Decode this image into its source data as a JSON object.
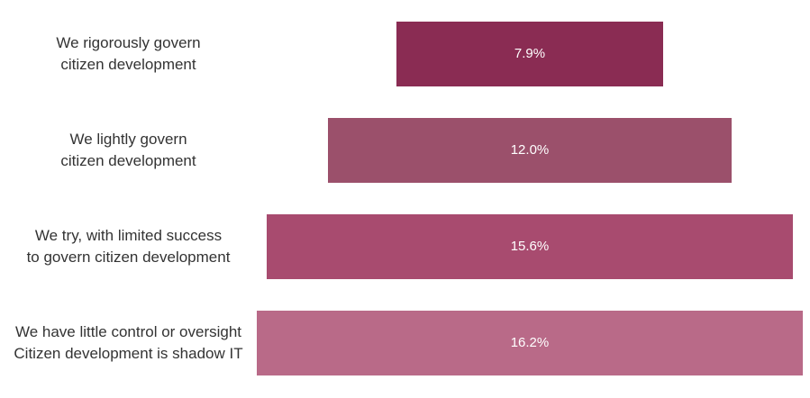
{
  "chart_data": {
    "type": "bar",
    "orientation": "horizontal-centered-funnel",
    "title": "",
    "xlabel": "",
    "ylabel": "",
    "categories": [
      "We rigorously govern\ncitizen development",
      "We lightly govern\ncitizen development",
      "We try, with limited success\nto govern citizen development",
      "We have little control or oversight\nCitizen development is shadow IT"
    ],
    "values": [
      7.9,
      12.0,
      15.6,
      16.2
    ],
    "value_labels": [
      "7.9%",
      "12.0%",
      "15.6%",
      "16.2%"
    ],
    "colors": [
      "#8a2c53",
      "#9b506b",
      "#a84b6f",
      "#b96a88"
    ],
    "grid": false,
    "legend": "none"
  }
}
